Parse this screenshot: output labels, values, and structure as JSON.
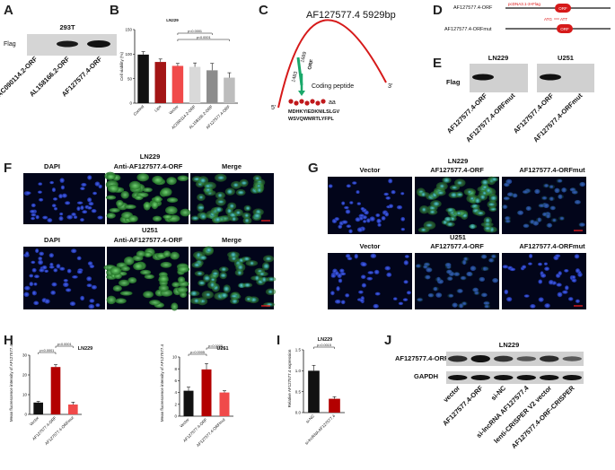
{
  "panels": {
    "A": {
      "letter": "A",
      "cell_line": "293T",
      "row_label": "Flag",
      "lanes": [
        "AC090114.2-ORF",
        "AL158166.2-ORF",
        "AF127577.4-ORF"
      ]
    },
    "B": {
      "letter": "B",
      "chart_data": {
        "type": "bar",
        "title": "LN229",
        "ylabel": "Cell viability (%)",
        "ylim": [
          0,
          150
        ],
        "yticks": [
          0,
          50,
          100,
          150
        ],
        "categories": [
          "Control",
          "Lipo",
          "Vector",
          "AC090114.2-ORF",
          "AL158166.2-ORF",
          "AF127577.4-ORF"
        ],
        "values": [
          99,
          84,
          76,
          74,
          67,
          52
        ],
        "errors": [
          6,
          6,
          5,
          8,
          14,
          10
        ],
        "colors": [
          "#111111",
          "#a31515",
          "#f04a4a",
          "#d9d9d9",
          "#8c8c8c",
          "#bdbdbd"
        ],
        "annotations": [
          {
            "text": "p<0.0001",
            "from": 2,
            "to": 5
          },
          {
            "text": "p<0.0001",
            "from": 2,
            "to": 4
          }
        ]
      }
    },
    "C": {
      "letter": "C",
      "title": "AF127577.4  5929bp",
      "pos1": "1483",
      "pos2": "1689",
      "orf": "ORF",
      "peptide_label": "Coding peptide",
      "aa_label": "aa",
      "sequence_line1": "MDHKYIEDKNILSLGV",
      "sequence_line2": "WSVQWMRTLYFPL",
      "end5": "5'",
      "end3": "3'"
    },
    "D": {
      "letter": "D",
      "construct1": "AF127577.4-ORF",
      "construct2": "AF127577.4-ORFmut",
      "vector": "pcDNA3.1-3×Flag",
      "orf": "ORF",
      "mutation_from": "ATG",
      "mutation_to": "ATT"
    },
    "E": {
      "letter": "E",
      "cell1": "LN229",
      "cell2": "U251",
      "row_label": "Flag",
      "lanes": [
        "AF127577.4-ORF",
        "AF127577.4-ORFmut",
        "AF127577.4-ORF",
        "AF127577.4-ORFmut"
      ]
    },
    "F": {
      "letter": "F",
      "top_cell": "LN229",
      "bottom_cell": "U251",
      "top_cols": [
        "DAPI",
        "Anti-AF127577.4-ORF",
        "Merge"
      ],
      "bottom_cols": [
        "DAPI",
        "Anti-AF127577.4-ORF",
        "Merge"
      ]
    },
    "G": {
      "letter": "G",
      "top_cell": "LN229",
      "bottom_cell": "U251",
      "top_cols": [
        "Vector",
        "AF127577.4-ORF",
        "AF127577.4-ORFmut"
      ],
      "bottom_cols": [
        "Vector",
        "AF127577.4-ORF",
        "AF127577.4-ORFmut"
      ]
    },
    "H": {
      "letter": "H",
      "chart_data": [
        {
          "type": "bar",
          "title": "LN229",
          "ylabel": "Mean fluorescence intensity of AF127577.4",
          "ylim": [
            0,
            30
          ],
          "yticks": [
            0,
            10,
            20,
            30
          ],
          "categories": [
            "Vector",
            "AF127577.4-ORF",
            "AF127577.4-ORFmut"
          ],
          "values": [
            6,
            24,
            5
          ],
          "errors": [
            0.6,
            1.2,
            1.2
          ],
          "colors": [
            "#111111",
            "#b30000",
            "#f04a4a"
          ],
          "annotations": [
            {
              "text": "p<0.0001",
              "from": 0,
              "to": 1
            },
            {
              "text": "p<0.0001",
              "from": 1,
              "to": 2
            }
          ]
        },
        {
          "type": "bar",
          "title": "U251",
          "ylabel": "Mean fluorescence intensity of AF127577.4",
          "ylim": [
            0,
            10
          ],
          "yticks": [
            0,
            2,
            4,
            6,
            8,
            10
          ],
          "categories": [
            "Vector",
            "AF127577.4-ORF",
            "AF127577.4-ORFmut"
          ],
          "values": [
            4.3,
            7.9,
            4.0
          ],
          "errors": [
            0.6,
            1.0,
            0.3
          ],
          "colors": [
            "#111111",
            "#b30000",
            "#f04a4a"
          ],
          "annotations": [
            {
              "text": "p=0.0005",
              "from": 0,
              "to": 1
            },
            {
              "text": "p=0.0005",
              "from": 1,
              "to": 2
            }
          ]
        }
      ]
    },
    "I": {
      "letter": "I",
      "chart_data": {
        "type": "bar",
        "title": "LN229",
        "ylabel": "Relative AF127577.4 expression",
        "ylim": [
          0,
          1.5
        ],
        "yticks": [
          0.0,
          0.5,
          1.0,
          1.5
        ],
        "categories": [
          "si-NC",
          "si-lncRNA AF127577.4"
        ],
        "values": [
          1.0,
          0.33
        ],
        "errors": [
          0.13,
          0.05
        ],
        "colors": [
          "#111111",
          "#b30000"
        ],
        "annotations": [
          {
            "text": "p=0.0015",
            "from": 0,
            "to": 1
          }
        ]
      }
    },
    "J": {
      "letter": "J",
      "cell_line": "LN229",
      "rows": [
        "AF127577.4-ORF",
        "GAPDH"
      ],
      "lanes": [
        "vector",
        "AF127577.4-ORF",
        "si-NC",
        "si-lncRNA AF127577.4",
        "lenti-CRISPER V2 vector",
        "AF127577.4-ORF-CRISPER"
      ]
    }
  }
}
